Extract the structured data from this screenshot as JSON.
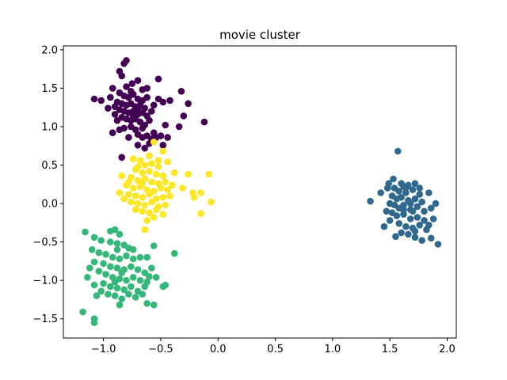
{
  "chart_data": {
    "type": "scatter",
    "title": "movie cluster",
    "xlabel": "",
    "ylabel": "",
    "xlim": [
      -1.35,
      2.08
    ],
    "ylim": [
      -1.75,
      2.05
    ],
    "xticks": [
      -1.0,
      -0.5,
      0.0,
      0.5,
      1.0,
      1.5,
      2.0
    ],
    "xtick_labels": [
      "−1.0",
      "−0.5",
      "0.0",
      "0.5",
      "1.0",
      "1.5",
      "2.0"
    ],
    "yticks": [
      -1.5,
      -1.0,
      -0.5,
      0.0,
      0.5,
      1.0,
      1.5,
      2.0
    ],
    "ytick_labels": [
      "−1.5",
      "−1.0",
      "−0.5",
      "0.0",
      "0.5",
      "1.0",
      "1.5",
      "2.0"
    ],
    "grid": false,
    "legend": "none",
    "series": [
      {
        "color": "#440154",
        "points": [
          [
            -0.8,
            1.86
          ],
          [
            -0.82,
            1.82
          ],
          [
            -0.86,
            1.72
          ],
          [
            -0.84,
            1.66
          ],
          [
            -0.92,
            1.5
          ],
          [
            -0.75,
            1.56
          ],
          [
            -0.7,
            1.6
          ],
          [
            -0.66,
            1.48
          ],
          [
            -0.62,
            1.5
          ],
          [
            -0.52,
            1.62
          ],
          [
            -0.86,
            1.44
          ],
          [
            -0.82,
            1.4
          ],
          [
            -0.78,
            1.38
          ],
          [
            -0.74,
            1.42
          ],
          [
            -0.7,
            1.36
          ],
          [
            -0.66,
            1.34
          ],
          [
            -0.88,
            1.32
          ],
          [
            -0.84,
            1.3
          ],
          [
            -0.8,
            1.28
          ],
          [
            -0.76,
            1.3
          ],
          [
            -0.72,
            1.26
          ],
          [
            -0.68,
            1.28
          ],
          [
            -0.64,
            1.24
          ],
          [
            -0.86,
            1.22
          ],
          [
            -0.82,
            1.2
          ],
          [
            -0.78,
            1.18
          ],
          [
            -0.74,
            1.2
          ],
          [
            -0.7,
            1.16
          ],
          [
            -0.66,
            1.18
          ],
          [
            -0.62,
            1.14
          ],
          [
            -0.8,
            1.1
          ],
          [
            -0.76,
            1.08
          ],
          [
            -0.72,
            1.1
          ],
          [
            -0.68,
            1.06
          ],
          [
            -0.64,
            1.02
          ],
          [
            -0.84,
            1.12
          ],
          [
            -0.9,
            1.26
          ],
          [
            -0.94,
            1.38
          ],
          [
            -0.96,
            1.24
          ],
          [
            -1.02,
            1.34
          ],
          [
            -1.08,
            1.36
          ],
          [
            -0.88,
            1.08
          ],
          [
            -0.76,
            1.0
          ],
          [
            -0.72,
            0.96
          ],
          [
            -0.66,
            0.98
          ],
          [
            -0.86,
            0.96
          ],
          [
            -0.82,
            0.98
          ],
          [
            -0.7,
            0.9
          ],
          [
            -0.66,
            0.86
          ],
          [
            -0.62,
            0.88
          ],
          [
            -0.58,
            0.84
          ],
          [
            -0.54,
            0.86
          ],
          [
            -0.5,
            0.88
          ],
          [
            -0.46,
            1.02
          ],
          [
            -0.52,
            1.36
          ],
          [
            -0.48,
            1.32
          ],
          [
            -0.42,
            1.34
          ],
          [
            -0.32,
            1.46
          ],
          [
            -0.26,
            1.3
          ],
          [
            -0.3,
            1.14
          ],
          [
            -0.34,
            1.0
          ],
          [
            -0.12,
            1.06
          ],
          [
            -0.44,
            0.86
          ],
          [
            -0.48,
            0.76
          ],
          [
            -0.6,
            0.78
          ],
          [
            -0.56,
            0.92
          ],
          [
            -0.64,
            0.72
          ],
          [
            -0.84,
            0.6
          ],
          [
            -0.7,
            0.76
          ],
          [
            -0.78,
            0.86
          ],
          [
            -0.6,
            1.08
          ],
          [
            -0.58,
            1.2
          ],
          [
            -0.56,
            1.28
          ],
          [
            -0.62,
            1.38
          ],
          [
            -0.9,
            1.16
          ],
          [
            -0.92,
            0.92
          ],
          [
            -0.76,
            1.46
          ],
          [
            -0.8,
            1.52
          ],
          [
            -0.7,
            1.22
          ],
          [
            -0.74,
            1.14
          ]
        ]
      },
      {
        "color": "#31688e",
        "points": [
          [
            1.57,
            0.68
          ],
          [
            1.53,
            0.32
          ],
          [
            1.49,
            0.26
          ],
          [
            1.62,
            0.22
          ],
          [
            1.66,
            0.24
          ],
          [
            1.72,
            0.26
          ],
          [
            1.54,
            0.2
          ],
          [
            1.58,
            0.16
          ],
          [
            1.64,
            0.14
          ],
          [
            1.7,
            0.18
          ],
          [
            1.76,
            0.12
          ],
          [
            1.52,
            0.1
          ],
          [
            1.56,
            0.06
          ],
          [
            1.6,
            0.08
          ],
          [
            1.66,
            0.04
          ],
          [
            1.72,
            0.06
          ],
          [
            1.78,
            0.02
          ],
          [
            1.84,
            0.14
          ],
          [
            1.5,
            0.0
          ],
          [
            1.54,
            -0.02
          ],
          [
            1.58,
            -0.06
          ],
          [
            1.62,
            -0.02
          ],
          [
            1.68,
            -0.08
          ],
          [
            1.74,
            -0.04
          ],
          [
            1.8,
            -0.1
          ],
          [
            1.86,
            -0.06
          ],
          [
            1.52,
            -0.12
          ],
          [
            1.56,
            -0.16
          ],
          [
            1.62,
            -0.14
          ],
          [
            1.68,
            -0.2
          ],
          [
            1.74,
            -0.18
          ],
          [
            1.8,
            -0.22
          ],
          [
            1.58,
            -0.26
          ],
          [
            1.64,
            -0.3
          ],
          [
            1.7,
            -0.32
          ],
          [
            1.76,
            -0.28
          ],
          [
            1.82,
            -0.34
          ],
          [
            1.6,
            -0.38
          ],
          [
            1.66,
            -0.4
          ],
          [
            1.72,
            -0.44
          ],
          [
            1.78,
            -0.48
          ],
          [
            1.55,
            -0.43
          ],
          [
            1.92,
            -0.53
          ],
          [
            1.86,
            -0.45
          ],
          [
            1.84,
            -0.28
          ],
          [
            1.33,
            0.03
          ],
          [
            1.47,
            -0.1
          ],
          [
            1.45,
            -0.3
          ],
          [
            1.42,
            0.14
          ],
          [
            1.88,
            -0.2
          ],
          [
            1.9,
            0.0
          ],
          [
            1.7,
            -0.1
          ],
          [
            1.64,
            0.2
          ],
          [
            1.6,
            0.26
          ],
          [
            1.68,
            0.0
          ],
          [
            1.48,
            0.2
          ],
          [
            1.5,
            -0.22
          ],
          [
            1.76,
            0.2
          ],
          [
            1.72,
            -0.36
          ],
          [
            1.62,
            -0.08
          ]
        ]
      },
      {
        "color": "#35b779",
        "points": [
          [
            -1.18,
            -1.41
          ],
          [
            -1.08,
            -1.5
          ],
          [
            -1.08,
            -1.55
          ],
          [
            -1.16,
            -0.37
          ],
          [
            -0.94,
            -0.36
          ],
          [
            -0.9,
            -0.34
          ],
          [
            -0.86,
            -0.4
          ],
          [
            -1.08,
            -0.44
          ],
          [
            -1.02,
            -0.48
          ],
          [
            -0.94,
            -0.5
          ],
          [
            -0.88,
            -0.52
          ],
          [
            -0.82,
            -0.54
          ],
          [
            -0.78,
            -0.58
          ],
          [
            -0.74,
            -0.6
          ],
          [
            -1.1,
            -0.6
          ],
          [
            -1.04,
            -0.64
          ],
          [
            -0.98,
            -0.66
          ],
          [
            -0.92,
            -0.7
          ],
          [
            -0.86,
            -0.72
          ],
          [
            -0.8,
            -0.68
          ],
          [
            -0.74,
            -0.72
          ],
          [
            -0.68,
            -0.7
          ],
          [
            -1.08,
            -0.76
          ],
          [
            -1.0,
            -0.78
          ],
          [
            -0.94,
            -0.82
          ],
          [
            -0.88,
            -0.84
          ],
          [
            -0.82,
            -0.86
          ],
          [
            -0.76,
            -0.82
          ],
          [
            -0.7,
            -0.86
          ],
          [
            -0.64,
            -0.9
          ],
          [
            -1.04,
            -0.88
          ],
          [
            -0.98,
            -0.92
          ],
          [
            -0.92,
            -0.96
          ],
          [
            -0.86,
            -0.98
          ],
          [
            -0.8,
            -1.0
          ],
          [
            -0.74,
            -0.96
          ],
          [
            -0.68,
            -1.0
          ],
          [
            -0.62,
            -1.02
          ],
          [
            -1.0,
            -1.04
          ],
          [
            -0.94,
            -1.08
          ],
          [
            -0.88,
            -1.1
          ],
          [
            -0.82,
            -1.12
          ],
          [
            -0.76,
            -1.08
          ],
          [
            -0.7,
            -1.14
          ],
          [
            -0.64,
            -1.08
          ],
          [
            -1.08,
            -1.06
          ],
          [
            -1.02,
            -1.14
          ],
          [
            -0.96,
            -1.18
          ],
          [
            -0.9,
            -1.2
          ],
          [
            -0.84,
            -1.24
          ],
          [
            -0.78,
            -1.18
          ],
          [
            -0.72,
            -1.22
          ],
          [
            -0.66,
            -1.18
          ],
          [
            -0.86,
            -1.32
          ],
          [
            -0.56,
            -1.32
          ],
          [
            -0.62,
            -1.3
          ],
          [
            -0.46,
            -1.06
          ],
          [
            -0.48,
            -1.08
          ],
          [
            -0.38,
            -0.65
          ],
          [
            -0.56,
            -0.55
          ],
          [
            -0.62,
            -0.7
          ],
          [
            -0.58,
            -0.84
          ],
          [
            -0.54,
            -0.96
          ],
          [
            -0.6,
            -0.95
          ],
          [
            -1.12,
            -0.84
          ],
          [
            -1.14,
            -0.96
          ],
          [
            -1.06,
            -1.2
          ],
          [
            -0.88,
            -0.6
          ],
          [
            -0.84,
            -0.9
          ],
          [
            -0.9,
            -1.02
          ]
        ]
      },
      {
        "color": "#fde725",
        "points": [
          [
            -0.56,
            0.8
          ],
          [
            -0.48,
            0.68
          ],
          [
            -0.6,
            0.62
          ],
          [
            -0.68,
            0.56
          ],
          [
            -0.64,
            0.5
          ],
          [
            -0.58,
            0.52
          ],
          [
            -0.52,
            0.48
          ],
          [
            -0.72,
            0.44
          ],
          [
            -0.66,
            0.4
          ],
          [
            -0.6,
            0.42
          ],
          [
            -0.54,
            0.38
          ],
          [
            -0.48,
            0.36
          ],
          [
            -0.76,
            0.34
          ],
          [
            -0.7,
            0.3
          ],
          [
            -0.64,
            0.32
          ],
          [
            -0.58,
            0.28
          ],
          [
            -0.52,
            0.26
          ],
          [
            -0.46,
            0.28
          ],
          [
            -0.8,
            0.24
          ],
          [
            -0.74,
            0.2
          ],
          [
            -0.68,
            0.22
          ],
          [
            -0.62,
            0.18
          ],
          [
            -0.56,
            0.16
          ],
          [
            -0.5,
            0.2
          ],
          [
            -0.44,
            0.18
          ],
          [
            -0.78,
            0.12
          ],
          [
            -0.72,
            0.1
          ],
          [
            -0.66,
            0.08
          ],
          [
            -0.6,
            0.12
          ],
          [
            -0.54,
            0.06
          ],
          [
            -0.48,
            0.08
          ],
          [
            -0.42,
            0.1
          ],
          [
            -0.76,
            0.02
          ],
          [
            -0.7,
            0.0
          ],
          [
            -0.64,
            -0.02
          ],
          [
            -0.58,
            0.02
          ],
          [
            -0.52,
            -0.04
          ],
          [
            -0.46,
            -0.02
          ],
          [
            -0.72,
            -0.08
          ],
          [
            -0.66,
            -0.1
          ],
          [
            -0.6,
            -0.12
          ],
          [
            -0.54,
            -0.08
          ],
          [
            -0.48,
            -0.14
          ],
          [
            -0.62,
            -0.22
          ],
          [
            -0.56,
            -0.18
          ],
          [
            -0.64,
            -0.34
          ],
          [
            -0.84,
            0.36
          ],
          [
            -0.86,
            0.14
          ],
          [
            -0.82,
            0.06
          ],
          [
            -0.78,
            0.28
          ],
          [
            -0.4,
            0.24
          ],
          [
            -0.38,
            0.4
          ],
          [
            -0.31,
            0.2
          ],
          [
            -0.26,
            0.38
          ],
          [
            -0.22,
            0.14
          ],
          [
            -0.21,
            0.08
          ],
          [
            -0.15,
            0.14
          ],
          [
            -0.15,
            -0.13
          ],
          [
            -0.08,
            0.38
          ],
          [
            -0.06,
            0.02
          ],
          [
            -0.44,
            0.54
          ],
          [
            -0.52,
            0.56
          ],
          [
            -0.7,
            0.48
          ],
          [
            -0.74,
            0.58
          ],
          [
            -0.66,
            0.26
          ]
        ]
      }
    ]
  }
}
